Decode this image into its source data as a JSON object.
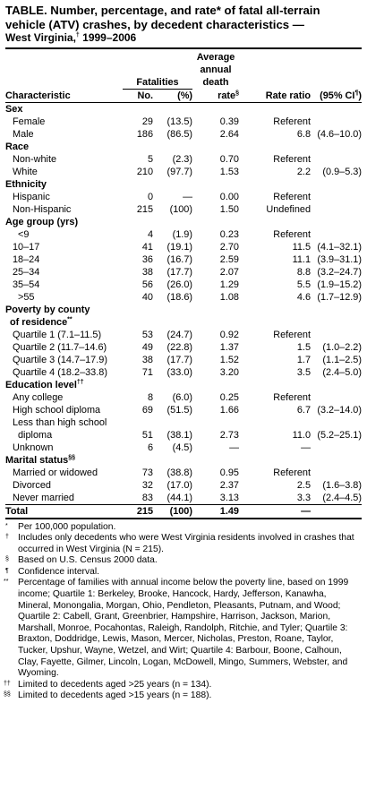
{
  "title": {
    "line1": "TABLE. Number, percentage, and rate* of fatal all-terrain",
    "line2": "vehicle (ATV) crashes, by decedent characteristics —",
    "line3_main": "West Virginia,",
    "line3_mark": "†",
    "line3_end": " 1999–2006"
  },
  "headers": {
    "characteristic": "Characteristic",
    "fatalities": "Fatalities",
    "no": "No.",
    "pct": "(%)",
    "rate_l1": "Average",
    "rate_l2": "annual",
    "rate_l3": "death",
    "rate_l4": "rate",
    "rate_mark": "§",
    "ratio": "Rate ratio",
    "ci_open": "(95% CI",
    "ci_mark": "¶",
    "ci_close": ")"
  },
  "sections": {
    "sex": "Sex",
    "race": "Race",
    "ethnicity": "Ethnicity",
    "age": "Age group (yrs)",
    "poverty_l1": "Poverty by county",
    "poverty_l2": "of residence",
    "poverty_mark": "**",
    "education": "Education level",
    "education_mark": "††",
    "marital": "Marital status",
    "marital_mark": "§§"
  },
  "rows": {
    "female": [
      "Female",
      "29",
      "(13.5)",
      "0.39",
      "Referent",
      ""
    ],
    "male": [
      "Male",
      "186",
      "(86.5)",
      "2.64",
      "6.8",
      "(4.6–10.0)"
    ],
    "nonwhite": [
      "Non-white",
      "5",
      "(2.3)",
      "0.70",
      "Referent",
      ""
    ],
    "white": [
      "White",
      "210",
      "(97.7)",
      "1.53",
      "2.2",
      "(0.9–5.3)"
    ],
    "hispanic": [
      "Hispanic",
      "0",
      "—",
      "0.00",
      "Referent",
      ""
    ],
    "nonhispanic": [
      "Non-Hispanic",
      "215",
      "(100)",
      "1.50",
      "Undefined",
      ""
    ],
    "age_le9": [
      "<9",
      "4",
      "(1.9)",
      "0.23",
      "Referent",
      ""
    ],
    "age_10": [
      "10–17",
      "41",
      "(19.1)",
      "2.70",
      "11.5",
      "(4.1–32.1)"
    ],
    "age_18": [
      "18–24",
      "36",
      "(16.7)",
      "2.59",
      "11.1",
      "(3.9–31.1)"
    ],
    "age_25": [
      "25–34",
      "38",
      "(17.7)",
      "2.07",
      "8.8",
      "(3.2–24.7)"
    ],
    "age_35": [
      "35–54",
      "56",
      "(26.0)",
      "1.29",
      "5.5",
      "(1.9–15.2)"
    ],
    "age_55": [
      ">55",
      "40",
      "(18.6)",
      "1.08",
      "4.6",
      "(1.7–12.9)"
    ],
    "q1": [
      "Quartile 1  (7.1–11.5)",
      "53",
      "(24.7)",
      "0.92",
      "Referent",
      ""
    ],
    "q2": [
      "Quartile 2 (11.7–14.6)",
      "49",
      "(22.8)",
      "1.37",
      "1.5",
      "(1.0–2.2)"
    ],
    "q3": [
      "Quartile 3 (14.7–17.9)",
      "38",
      "(17.7)",
      "1.52",
      "1.7",
      "(1.1–2.5)"
    ],
    "q4": [
      "Quartile 4 (18.2–33.8)",
      "71",
      "(33.0)",
      "3.20",
      "3.5",
      "(2.4–5.0)"
    ],
    "college": [
      "Any college",
      "8",
      "(6.0)",
      "0.25",
      "Referent",
      ""
    ],
    "highschool": [
      "High school diploma",
      "69",
      "(51.5)",
      "1.66",
      "6.7",
      "(3.2–14.0)"
    ],
    "lesshs_l1": "Less than high school",
    "lesshs": [
      "diploma",
      "51",
      "(38.1)",
      "2.73",
      "11.0",
      "(5.2–25.1)"
    ],
    "unknown": [
      "Unknown",
      "6",
      "(4.5)",
      "—",
      "—",
      ""
    ],
    "married": [
      "Married or widowed",
      "73",
      "(38.8)",
      "0.95",
      "Referent",
      ""
    ],
    "divorced": [
      "Divorced",
      "32",
      "(17.0)",
      "2.37",
      "2.5",
      "(1.6–3.8)"
    ],
    "never": [
      "Never married",
      "83",
      "(44.1)",
      "3.13",
      "3.3",
      "(2.4–4.5)"
    ],
    "total": [
      "Total",
      "215",
      "(100)",
      "1.49",
      "—",
      ""
    ]
  },
  "notes": [
    {
      "mark": "*",
      "text": "Per 100,000 population."
    },
    {
      "mark": "†",
      "text": "Includes only decedents who were West Virginia residents involved in crashes that occurred in West Virginia (N = 215)."
    },
    {
      "mark": "§",
      "text": "Based on U.S. Census 2000 data."
    },
    {
      "mark": "¶",
      "text": "Confidence interval."
    },
    {
      "mark": "**",
      "text": "Percentage of families with annual income below the poverty line, based on 1999 income; Quartile 1: Berkeley, Brooke, Hancock, Hardy, Jefferson, Kanawha, Mineral, Monongalia, Morgan, Ohio, Pendleton, Pleasants, Putnam, and Wood; Quartile 2: Cabell, Grant, Greenbrier, Hampshire, Harrison, Jackson, Marion, Marshall, Monroe, Pocahontas, Raleigh, Randolph, Ritchie, and Tyler; Quartile 3: Braxton, Doddridge, Lewis, Mason, Mercer, Nicholas, Preston, Roane, Taylor, Tucker, Upshur, Wayne, Wetzel, and Wirt; Quartile 4: Barbour, Boone, Calhoun, Clay, Fayette, Gilmer, Lincoln, Logan, McDowell, Mingo, Summers, Webster, and Wyoming."
    },
    {
      "mark": "††",
      "text": "Limited to decedents aged >25 years (n = 134)."
    },
    {
      "mark": "§§",
      "text": "Limited to decedents aged >15 years (n = 188)."
    }
  ]
}
